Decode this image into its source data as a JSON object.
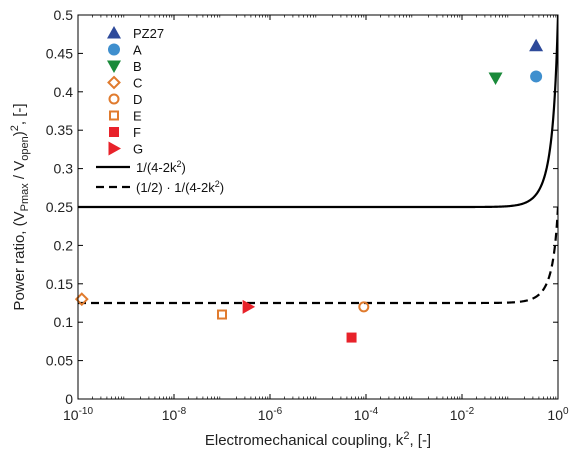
{
  "chart_data": {
    "type": "scatter",
    "xscale": "log",
    "xlim": [
      1e-10,
      1
    ],
    "ylim": [
      0,
      0.5
    ],
    "x_ticks": [
      1e-10,
      1e-08,
      1e-06,
      0.0001,
      0.01,
      1
    ],
    "x_tick_labels": [
      {
        "base": "10",
        "exp": "-10"
      },
      {
        "base": "10",
        "exp": "-8"
      },
      {
        "base": "10",
        "exp": "-6"
      },
      {
        "base": "10",
        "exp": "-4"
      },
      {
        "base": "10",
        "exp": "-2"
      },
      {
        "base": "10",
        "exp": "0"
      }
    ],
    "y_ticks": [
      0,
      0.05,
      0.1,
      0.15,
      0.2,
      0.25,
      0.3,
      0.35,
      0.4,
      0.45,
      0.5
    ],
    "y_tick_labels": [
      "0",
      "0.05",
      "0.1",
      "0.15",
      "0.2",
      "0.25",
      "0.3",
      "0.35",
      "0.4",
      "0.45",
      "0.5"
    ],
    "xlabel": {
      "pre": "Electromechanical coupling, k",
      "sup": "2",
      "post": ", [-]"
    },
    "ylabel": {
      "t1": "Power ratio, (V",
      "s1": "Pmax",
      "t2": " / V",
      "s2": "open",
      "t3": ")",
      "sup": "2",
      "t4": ", [-]"
    },
    "legend_position": "top-left",
    "grid": false,
    "series": [
      {
        "name": "PZ27",
        "marker": "triangle-up",
        "color": "#2e4a9a",
        "filled": true,
        "points": [
          [
            0.35,
            0.46
          ]
        ]
      },
      {
        "name": "A",
        "marker": "circle",
        "color": "#3f8fce",
        "filled": true,
        "points": [
          [
            0.35,
            0.42
          ]
        ]
      },
      {
        "name": "B",
        "marker": "triangle-down",
        "color": "#1a8a3a",
        "filled": true,
        "points": [
          [
            0.05,
            0.418
          ]
        ]
      },
      {
        "name": "C",
        "marker": "diamond",
        "color": "#e07b2e",
        "filled": false,
        "points": [
          [
            1.2e-10,
            0.13
          ]
        ]
      },
      {
        "name": "D",
        "marker": "circle",
        "color": "#e07b2e",
        "filled": false,
        "points": [
          [
            9e-05,
            0.12
          ]
        ]
      },
      {
        "name": "E",
        "marker": "square",
        "color": "#e07b2e",
        "filled": false,
        "points": [
          [
            1e-07,
            0.11
          ]
        ]
      },
      {
        "name": "F",
        "marker": "square",
        "color": "#e8222a",
        "filled": true,
        "points": [
          [
            5e-05,
            0.08
          ]
        ]
      },
      {
        "name": "G",
        "marker": "triangle-right",
        "color": "#e8222a",
        "filled": true,
        "points": [
          [
            3.5e-07,
            0.12
          ]
        ]
      }
    ],
    "curves": [
      {
        "name": {
          "pre": "1/(4-2k",
          "sup": "2",
          "post": ")"
        },
        "formula": "1/(4-2k^2)",
        "factor": 1,
        "style": "solid",
        "color": "#000000"
      },
      {
        "name": {
          "pre": "(1/2) · 1/(4-2k",
          "sup": "2",
          "post": ")"
        },
        "formula": "(1/2)/(4-2k^2)",
        "factor": 0.5,
        "style": "dashed",
        "color": "#000000"
      }
    ]
  }
}
